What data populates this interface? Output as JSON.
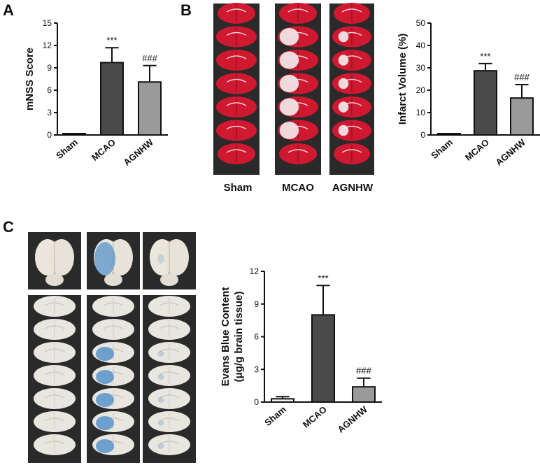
{
  "panels": {
    "A": "A",
    "B": "B",
    "C": "C"
  },
  "photo_labels_b": [
    "Sham",
    "MCAO",
    "AGNHW"
  ],
  "colors": {
    "sham": "#f2f2f2",
    "mcao": "#4a4a4a",
    "agnhw": "#9a9a9a",
    "stain_red": "#d01830",
    "stain_white": "#f0e4e6",
    "evans_blue": "#4f8fc9"
  },
  "chart_data": [
    {
      "id": "mnss",
      "type": "bar",
      "categories": [
        "Sham",
        "MCAO",
        "AGNHW"
      ],
      "values": [
        0,
        9.7,
        7.1
      ],
      "errors": [
        0,
        2.0,
        2.2
      ],
      "annotations": [
        "",
        "***",
        "###"
      ],
      "ylabel": "mNSS Score",
      "ylim": [
        0,
        15
      ],
      "yticks": [
        0,
        3,
        6,
        9,
        12,
        15
      ],
      "grid": false
    },
    {
      "id": "infarct",
      "type": "bar",
      "categories": [
        "Sham",
        "MCAO",
        "AGNHW"
      ],
      "values": [
        0,
        28.7,
        16.5
      ],
      "errors": [
        0,
        3.2,
        6.0
      ],
      "annotations": [
        "",
        "***",
        "###"
      ],
      "ylabel": "Infarct Volume (%)",
      "ylim": [
        0,
        50
      ],
      "yticks": [
        0,
        10,
        20,
        30,
        40,
        50
      ],
      "grid": false
    },
    {
      "id": "evans",
      "type": "bar",
      "categories": [
        "Sham",
        "MCAO",
        "AGNHW"
      ],
      "values": [
        0.3,
        8.0,
        1.4
      ],
      "errors": [
        0.2,
        2.7,
        0.8
      ],
      "annotations": [
        "",
        "***",
        "###"
      ],
      "ylabel": "Evans Blue Content",
      "ylabel2": "(μg/g brain tissue)",
      "ylim": [
        0,
        12
      ],
      "yticks": [
        0,
        3,
        6,
        9,
        12
      ],
      "grid": false
    }
  ]
}
